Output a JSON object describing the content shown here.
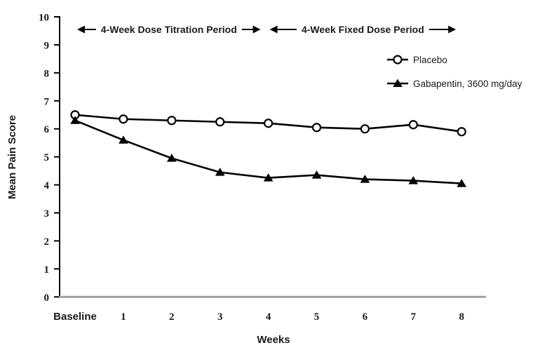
{
  "chart_data": {
    "type": "line",
    "title": "",
    "xlabel": "Weeks",
    "ylabel": "Mean Pain Score",
    "categories": [
      "Baseline",
      "1",
      "2",
      "3",
      "4",
      "5",
      "6",
      "7",
      "8"
    ],
    "ylim": [
      0,
      10
    ],
    "yticks": [
      0,
      1,
      2,
      3,
      4,
      5,
      6,
      7,
      8,
      9,
      10
    ],
    "grid": false,
    "legend_position": "upper-right",
    "series": [
      {
        "name": "Placebo",
        "marker": "circle-open",
        "color": "#000000",
        "values": [
          6.5,
          6.35,
          6.3,
          6.25,
          6.2,
          6.05,
          6.0,
          6.15,
          5.9
        ]
      },
      {
        "name": "Gabapentin, 3600 mg/day",
        "marker": "triangle-filled",
        "color": "#000000",
        "values": [
          6.3,
          5.6,
          4.95,
          4.45,
          4.25,
          4.35,
          4.2,
          4.15,
          4.05
        ]
      }
    ],
    "annotations": [
      {
        "text": "4-Week Dose Titration Period",
        "from_category": "Baseline",
        "to_category": "4"
      },
      {
        "text": "4-Week Fixed Dose Period",
        "from_category": "4",
        "to_category": "8"
      }
    ],
    "colors": {
      "line": "#000000",
      "x_axis_line": "#a0a0a0",
      "text": "#1a1a1a"
    }
  }
}
